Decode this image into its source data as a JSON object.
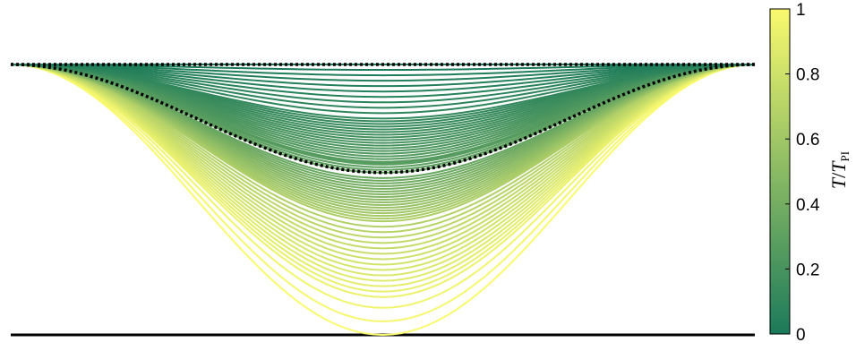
{
  "chart_data": {
    "type": "line",
    "title": "",
    "xlabel": "",
    "ylabel": "",
    "axes_visible": false,
    "x_range": [
      -1,
      1
    ],
    "y_range": [
      0,
      1
    ],
    "ceiling": {
      "y": 1,
      "style": "dotted",
      "color": "#000000"
    },
    "floor": {
      "y": 0,
      "style": "solid",
      "color": "#000000"
    },
    "reference_curve": {
      "y_min": 0.6,
      "style": "dotted",
      "color": "#000000"
    },
    "curve_family": {
      "profile": "cosine",
      "parameter": "T/T_PI",
      "normalized_tension": [
        0,
        0.01,
        0.02,
        0.03,
        0.04,
        0.05,
        0.06,
        0.07,
        0.08,
        0.09,
        0.1,
        0.11,
        0.12,
        0.13,
        0.14,
        0.15,
        0.16,
        0.17,
        0.18,
        0.19,
        0.2,
        0.21,
        0.22,
        0.23,
        0.24,
        0.25,
        0.26,
        0.27,
        0.28,
        0.29,
        0.3,
        0.32,
        0.34,
        0.36,
        0.38,
        0.4,
        0.42,
        0.44,
        0.46,
        0.48,
        0.5,
        0.52,
        0.54,
        0.56,
        0.58,
        0.6,
        0.62,
        0.64,
        0.66,
        0.68,
        0.7,
        0.72,
        0.74,
        0.76,
        0.78,
        0.8,
        0.82,
        0.84,
        0.86,
        0.88,
        0.9,
        0.92,
        0.94,
        0.96,
        0.98,
        1
      ],
      "min_height": [
        1,
        0.98,
        0.96,
        0.94,
        0.92,
        0.9,
        0.88,
        0.86,
        0.84,
        0.82,
        0.8,
        0.79,
        0.78,
        0.77,
        0.76,
        0.75,
        0.74,
        0.73,
        0.72,
        0.71,
        0.7,
        0.69,
        0.68,
        0.67,
        0.66,
        0.65,
        0.64,
        0.635,
        0.63,
        0.62,
        0.61,
        0.6,
        0.58,
        0.57,
        0.56,
        0.55,
        0.54,
        0.53,
        0.52,
        0.51,
        0.5,
        0.49,
        0.48,
        0.47,
        0.46,
        0.45,
        0.44,
        0.43,
        0.42,
        0.4,
        0.38,
        0.36,
        0.34,
        0.32,
        0.3,
        0.28,
        0.26,
        0.24,
        0.22,
        0.2,
        0.18,
        0.16,
        0.14,
        0.1,
        0.05,
        0
      ]
    }
  },
  "colorbar": {
    "label": "T/T_PI",
    "label_main": "T",
    "label_sep": "/",
    "label_den": "T",
    "label_sub": "PI",
    "ticks": [
      "0",
      "0.2",
      "0.4",
      "0.6",
      "0.8",
      "1"
    ],
    "tick_values": [
      0,
      0.2,
      0.4,
      0.6,
      0.8,
      1
    ],
    "color_low": "#1b7a5a",
    "color_high": "#fafa6e"
  }
}
